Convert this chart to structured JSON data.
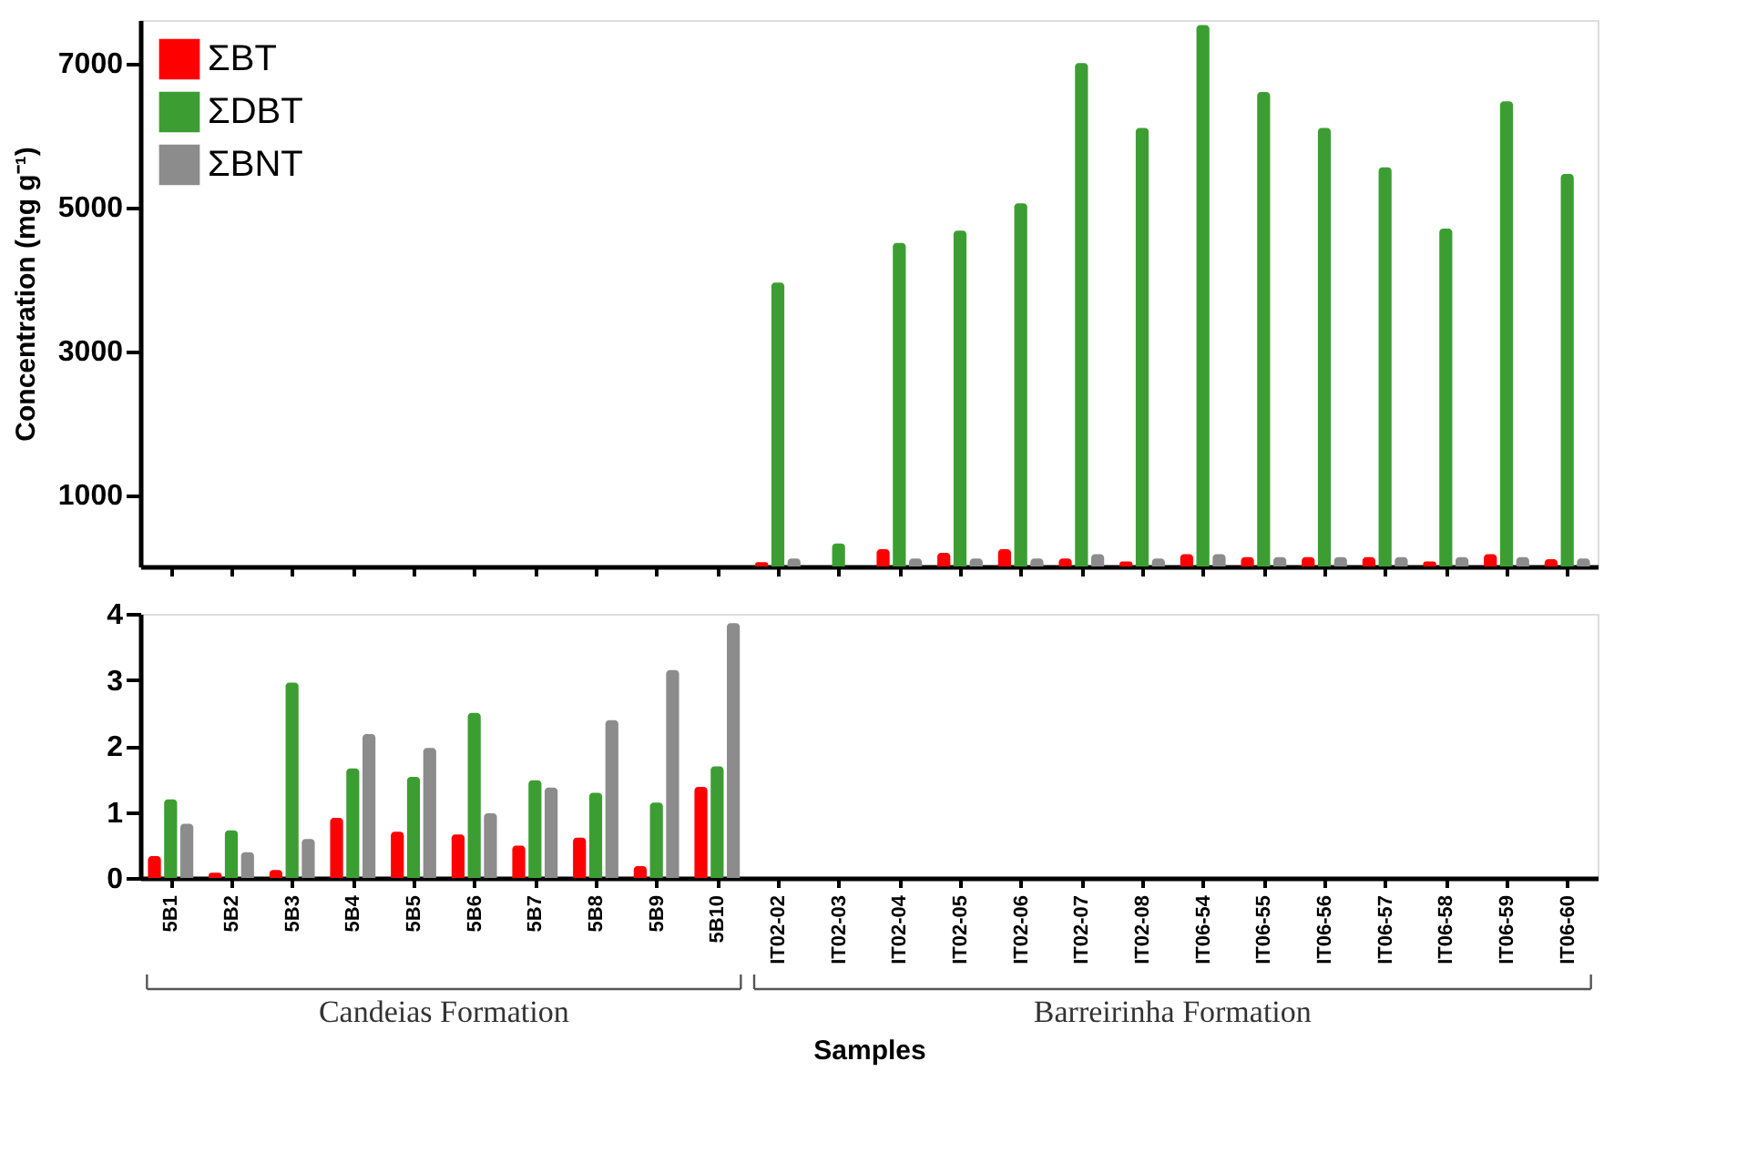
{
  "chart_data": [
    {
      "type": "bar",
      "ylabel": "Concentration (mg g⁻¹)",
      "categories": [
        null,
        null,
        null,
        null,
        null,
        null,
        null,
        null,
        null,
        null,
        null,
        null,
        null,
        null,
        null,
        null,
        null,
        null,
        null,
        null,
        null,
        null,
        null,
        null
      ],
      "series": [
        {
          "name": "ΣBT",
          "color": "#ff0000",
          "values": [
            null,
            null,
            null,
            null,
            null,
            null,
            null,
            null,
            null,
            null,
            60,
            null,
            240,
            190,
            240,
            110,
            70,
            170,
            130,
            130,
            130,
            70,
            170,
            100
          ]
        },
        {
          "name": "ΣDBT",
          "color": "#3c9e32",
          "values": [
            null,
            null,
            null,
            null,
            null,
            null,
            null,
            null,
            null,
            null,
            3950,
            320,
            4500,
            4670,
            5050,
            7000,
            6100,
            7530,
            6600,
            6100,
            5550,
            4700,
            6470,
            5460
          ]
        },
        {
          "name": "ΣBNT",
          "color": "#8c8c8c",
          "values": [
            null,
            null,
            null,
            null,
            null,
            null,
            null,
            null,
            null,
            null,
            110,
            null,
            110,
            110,
            110,
            170,
            110,
            170,
            130,
            130,
            130,
            130,
            130,
            110
          ]
        }
      ],
      "ylim": [
        0,
        7600
      ],
      "yticks": [
        1000,
        3000,
        5000,
        7000
      ],
      "grid": false,
      "legend": "top left",
      "tick_labels": "y"
    },
    {
      "type": "bar",
      "xlabel": "Samples",
      "categories": [
        "5B1",
        "5B2",
        "5B3",
        "5B4",
        "5B5",
        "5B6",
        "5B7",
        "5B8",
        "5B9",
        "5B10",
        "IT02-02",
        "IT02-03",
        "IT02-04",
        "IT02-05",
        "IT02-06",
        "IT02-07",
        "IT02-08",
        "IT06-54",
        "IT06-55",
        "IT06-56",
        "IT06-57",
        "IT06-58",
        "IT06-59",
        "IT06-60"
      ],
      "series": [
        {
          "color": "#ff0000",
          "values": [
            0.33,
            0.08,
            0.12,
            0.91,
            0.7,
            0.66,
            0.49,
            0.61,
            0.18,
            1.38,
            null,
            null,
            null,
            null,
            null,
            null,
            null,
            null,
            null,
            null,
            null,
            null,
            null,
            null
          ]
        },
        {
          "color": "#3c9e32",
          "values": [
            1.19,
            0.72,
            2.96,
            1.66,
            1.53,
            2.5,
            1.48,
            1.29,
            1.14,
            1.69,
            null,
            null,
            null,
            null,
            null,
            null,
            null,
            null,
            null,
            null,
            null,
            null,
            null,
            null
          ]
        },
        {
          "color": "#8c8c8c",
          "values": [
            0.82,
            0.39,
            0.59,
            2.18,
            1.97,
            0.98,
            1.37,
            2.39,
            3.15,
            3.86,
            null,
            null,
            null,
            null,
            null,
            null,
            null,
            null,
            null,
            null,
            null,
            null,
            null,
            null
          ]
        }
      ],
      "ylim": [
        0,
        4
      ],
      "yticks": [
        0,
        1,
        2,
        3,
        4
      ],
      "grid": false,
      "annotations": [
        "Candeias Formation",
        "Barreirinha Formation"
      ]
    }
  ]
}
